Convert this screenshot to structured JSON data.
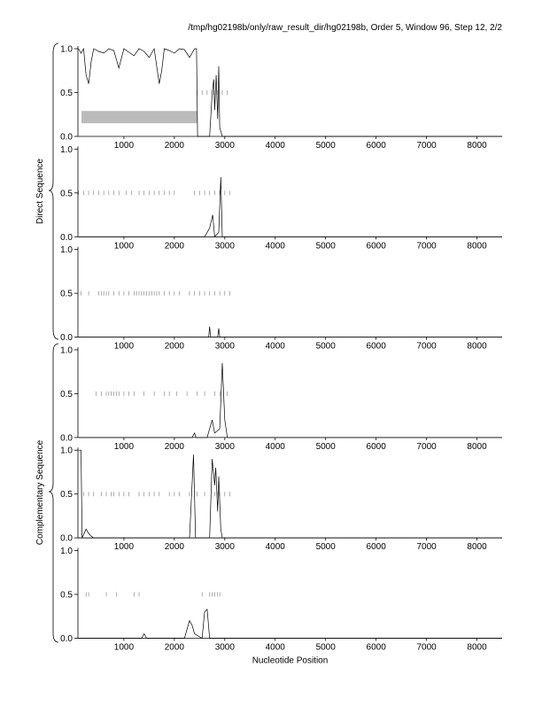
{
  "header": {
    "title": "/tmp/hg02198b/only/raw_result_dir/hg02198b, Order 5, Window 96, Step 12, 2/2"
  },
  "groups": [
    "Direct Sequence",
    "Complementary Sequence"
  ],
  "chart_data": [
    {
      "type": "line",
      "xlim": [
        88,
        8500
      ],
      "ylim": [
        0,
        1
      ],
      "xticks": [
        1000,
        2000,
        3000,
        4000,
        5000,
        6000,
        7000,
        8000
      ],
      "yticks": [
        {
          "value": 0,
          "label": "0.0"
        },
        {
          "value": 0.5,
          "label": "0.5"
        },
        {
          "value": 1,
          "label": "1.0"
        }
      ],
      "x": [
        100,
        150,
        200,
        250,
        300,
        350,
        400,
        500,
        600,
        700,
        800,
        900,
        1000,
        1100,
        1200,
        1300,
        1400,
        1500,
        1600,
        1700,
        1750,
        1800,
        1900,
        2000,
        2100,
        2200,
        2300,
        2400,
        2440,
        2460,
        2700,
        2750,
        2780,
        2800,
        2830,
        2860,
        2880,
        2900,
        2950,
        8500
      ],
      "series": [
        {
          "color": "#000000",
          "values": [
            1.0,
            0.95,
            1.0,
            0.7,
            0.6,
            0.85,
            1.0,
            0.97,
            0.95,
            1.0,
            0.98,
            0.78,
            1.0,
            0.96,
            0.92,
            1.0,
            0.97,
            0.9,
            1.0,
            0.6,
            0.75,
            1.0,
            0.98,
            0.95,
            1.0,
            0.99,
            0.9,
            1.0,
            1.0,
            0,
            0,
            0.5,
            0.65,
            0.3,
            0.7,
            0.2,
            0.8,
            0.1,
            0,
            0
          ]
        }
      ],
      "stop_level": 0.5,
      "stops": [
        2450,
        2550,
        2650,
        2780,
        2850,
        2950,
        3050
      ],
      "regions": [
        [
          158,
          2456
        ]
      ]
    },
    {
      "type": "line",
      "xlim": [
        88,
        8500
      ],
      "ylim": [
        0,
        1
      ],
      "xticks": [
        1000,
        2000,
        3000,
        4000,
        5000,
        6000,
        7000,
        8000
      ],
      "yticks": [
        {
          "value": 0,
          "label": "0.0"
        },
        {
          "value": 0.5,
          "label": "0.5"
        },
        {
          "value": 1,
          "label": "1.0"
        }
      ],
      "x": [
        100,
        2600,
        2650,
        2700,
        2760,
        2800,
        2880,
        2920,
        2950,
        8500
      ],
      "series": [
        {
          "color": "#000000",
          "values": [
            0,
            0,
            0.05,
            0.1,
            0.25,
            0,
            0.05,
            0.68,
            0,
            0
          ]
        }
      ],
      "stop_level": 0.5,
      "stops": [
        100,
        200,
        300,
        400,
        500,
        600,
        700,
        800,
        900,
        1050,
        1150,
        1300,
        1400,
        1500,
        1600,
        1700,
        1800,
        1900,
        2000,
        2400,
        2500,
        2600,
        2700,
        2800,
        2900,
        3000,
        3100
      ]
    },
    {
      "type": "line",
      "xlim": [
        88,
        8500
      ],
      "ylim": [
        0,
        1
      ],
      "xticks": [
        1000,
        2000,
        3000,
        4000,
        5000,
        6000,
        7000,
        8000
      ],
      "yticks": [
        {
          "value": 0,
          "label": "0.0"
        },
        {
          "value": 0.5,
          "label": "0.5"
        },
        {
          "value": 1,
          "label": "1.0"
        }
      ],
      "x": [
        100,
        2680,
        2700,
        2720,
        2860,
        2880,
        2900,
        8500
      ],
      "series": [
        {
          "color": "#000000",
          "values": [
            0,
            0,
            0.12,
            0,
            0,
            0.1,
            0,
            0
          ]
        }
      ],
      "stop_level": 0.5,
      "stops": [
        150,
        300,
        500,
        550,
        600,
        650,
        700,
        800,
        900,
        1000,
        1100,
        1200,
        1250,
        1300,
        1350,
        1400,
        1450,
        1500,
        1550,
        1600,
        1650,
        1700,
        1800,
        1900,
        2000,
        2100,
        2300,
        2400,
        2500,
        2600,
        2700,
        2800,
        2900,
        3000,
        3100
      ]
    },
    {
      "type": "line",
      "xlim": [
        88,
        8500
      ],
      "ylim": [
        0,
        1
      ],
      "xticks": [
        1000,
        2000,
        3000,
        4000,
        5000,
        6000,
        7000,
        8000
      ],
      "yticks": [
        {
          "value": 0,
          "label": "0.0"
        },
        {
          "value": 0.5,
          "label": "0.5"
        },
        {
          "value": 1,
          "label": "1.0"
        }
      ],
      "x": [
        100,
        2350,
        2400,
        2430,
        2650,
        2700,
        2750,
        2800,
        2900,
        2950,
        3000,
        3050,
        8500
      ],
      "series": [
        {
          "color": "#000000",
          "values": [
            0,
            0,
            0.05,
            0,
            0,
            0.1,
            0.2,
            0.05,
            0.1,
            0.85,
            0.2,
            0,
            0
          ]
        }
      ],
      "stop_level": 0.5,
      "stops": [
        450,
        550,
        650,
        700,
        750,
        800,
        850,
        900,
        1000,
        1100,
        1200,
        1400,
        1600,
        1800,
        1900,
        2050,
        2250,
        2450,
        2600,
        2800,
        2900,
        3050
      ]
    },
    {
      "type": "line",
      "xlim": [
        88,
        8500
      ],
      "ylim": [
        0,
        1
      ],
      "xticks": [
        1000,
        2000,
        3000,
        4000,
        5000,
        6000,
        7000,
        8000
      ],
      "yticks": [
        {
          "value": 0,
          "label": "0.0"
        },
        {
          "value": 0.5,
          "label": "0.5"
        },
        {
          "value": 1,
          "label": "1.0"
        }
      ],
      "x": [
        100,
        150,
        170,
        250,
        300,
        350,
        400,
        2300,
        2380,
        2420,
        2700,
        2750,
        2800,
        2820,
        2860,
        2880,
        2920,
        2950,
        8500
      ],
      "series": [
        {
          "color": "#000000",
          "values": [
            1.0,
            1.0,
            0,
            0.1,
            0.05,
            0.02,
            0,
            0,
            0.95,
            0,
            0,
            0.9,
            0.6,
            0.8,
            0.3,
            0.7,
            0.1,
            0,
            0
          ]
        }
      ],
      "stop_level": 0.5,
      "stops": [
        200,
        300,
        400,
        550,
        650,
        750,
        800,
        900,
        1000,
        1100,
        1300,
        1400,
        1500,
        1600,
        1700,
        1900,
        2000,
        2100,
        2300,
        2450,
        2600,
        2800,
        2850,
        2900,
        3000,
        3100
      ]
    },
    {
      "type": "line",
      "xlim": [
        88,
        8500
      ],
      "ylim": [
        0,
        1
      ],
      "xticks": [
        1000,
        2000,
        3000,
        4000,
        5000,
        6000,
        7000,
        8000
      ],
      "yticks": [
        {
          "value": 0,
          "label": "0.0"
        },
        {
          "value": 0.5,
          "label": "0.5"
        },
        {
          "value": 1,
          "label": "1.0"
        }
      ],
      "x": [
        100,
        1350,
        1400,
        1450,
        2200,
        2250,
        2300,
        2350,
        2400,
        2550,
        2600,
        2650,
        2700,
        8500
      ],
      "series": [
        {
          "color": "#000000",
          "values": [
            0,
            0,
            0.05,
            0,
            0,
            0.1,
            0.2,
            0.15,
            0.05,
            0,
            0.3,
            0.33,
            0,
            0
          ]
        }
      ],
      "stop_level": 0.5,
      "stops": [
        250,
        300,
        650,
        850,
        1200,
        1300,
        2550,
        2700,
        2750,
        2800,
        2850,
        2900
      ],
      "xlabel": "Nucleotide Position"
    }
  ]
}
